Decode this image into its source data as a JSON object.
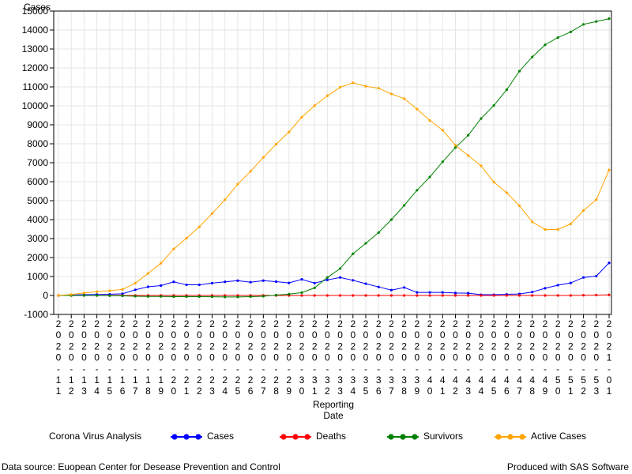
{
  "chart_data": {
    "type": "line",
    "ylabel": "Cases",
    "xlabel_lines": [
      "Reporting",
      "Date"
    ],
    "ylim": [
      -1000,
      15000
    ],
    "yticks": [
      -1000,
      0,
      1000,
      2000,
      3000,
      4000,
      5000,
      6000,
      7000,
      8000,
      9000,
      10000,
      11000,
      12000,
      13000,
      14000,
      15000
    ],
    "grid": true,
    "legend_position": "bottom",
    "x": [
      "2020-11",
      "2020-12",
      "2020-13",
      "2020-14",
      "2020-15",
      "2020-16",
      "2020-17",
      "2020-18",
      "2020-19",
      "2020-20",
      "2020-21",
      "2020-22",
      "2020-23",
      "2020-24",
      "2020-25",
      "2020-26",
      "2020-27",
      "2020-28",
      "2020-29",
      "2020-30",
      "2020-31",
      "2020-32",
      "2020-33",
      "2020-34",
      "2020-35",
      "2020-36",
      "2020-37",
      "2020-38",
      "2020-39",
      "2020-40",
      "2020-41",
      "2020-42",
      "2020-43",
      "2020-44",
      "2020-45",
      "2020-46",
      "2020-47",
      "2020-48",
      "2020-49",
      "2020-50",
      "2020-51",
      "2020-52",
      "2020-53",
      "2021-01"
    ],
    "series": [
      {
        "name": "Cases",
        "color": "#0000ff",
        "values": [
          0,
          20,
          40,
          50,
          60,
          90,
          300,
          460,
          520,
          720,
          560,
          560,
          650,
          720,
          780,
          700,
          780,
          730,
          660,
          850,
          650,
          820,
          950,
          800,
          620,
          450,
          280,
          420,
          160,
          160,
          160,
          130,
          120,
          40,
          40,
          60,
          80,
          180,
          380,
          540,
          660,
          950,
          1020,
          1720
        ]
      },
      {
        "name": "Deaths",
        "color": "#ff0000",
        "values": [
          0,
          0,
          0,
          0,
          0,
          0,
          0,
          0,
          0,
          0,
          0,
          0,
          0,
          0,
          0,
          0,
          0,
          0,
          0,
          0,
          0,
          0,
          0,
          0,
          0,
          0,
          0,
          0,
          0,
          0,
          0,
          0,
          0,
          0,
          0,
          0,
          0,
          0,
          0,
          0,
          0,
          10,
          20,
          30
        ]
      },
      {
        "name": "Survivors",
        "color": "#008000",
        "values": [
          0,
          0,
          0,
          0,
          -10,
          -20,
          -40,
          -50,
          -50,
          -60,
          -60,
          -60,
          -70,
          -80,
          -80,
          -60,
          -40,
          20,
          70,
          150,
          400,
          950,
          1420,
          2200,
          2750,
          3320,
          4000,
          4750,
          5550,
          6250,
          7050,
          7800,
          8450,
          9330,
          10020,
          10850,
          11830,
          12580,
          13220,
          13600,
          13900,
          14300,
          14450,
          14600
        ]
      },
      {
        "name": "Active Cases",
        "color": "#ffa500",
        "values": [
          0,
          50,
          130,
          200,
          250,
          320,
          650,
          1160,
          1700,
          2450,
          3020,
          3620,
          4320,
          5050,
          5870,
          6550,
          7280,
          7980,
          8620,
          9400,
          10010,
          10530,
          10980,
          11220,
          11030,
          10930,
          10630,
          10380,
          9830,
          9230,
          8720,
          7920,
          7380,
          6840,
          5980,
          5420,
          4730,
          3880,
          3480,
          3480,
          3770,
          4480,
          5050,
          6620
        ]
      }
    ]
  },
  "legend": {
    "title": "Corona Virus Analysis",
    "items": [
      {
        "label": "Cases",
        "color": "#0000ff"
      },
      {
        "label": "Deaths",
        "color": "#ff0000"
      },
      {
        "label": "Survivors",
        "color": "#008000"
      },
      {
        "label": "Active Cases",
        "color": "#ffa500"
      }
    ]
  },
  "footer": {
    "source": "Data source: Euopean Center for Desease Prevention and Control",
    "produced": "Produced with SAS Software"
  }
}
